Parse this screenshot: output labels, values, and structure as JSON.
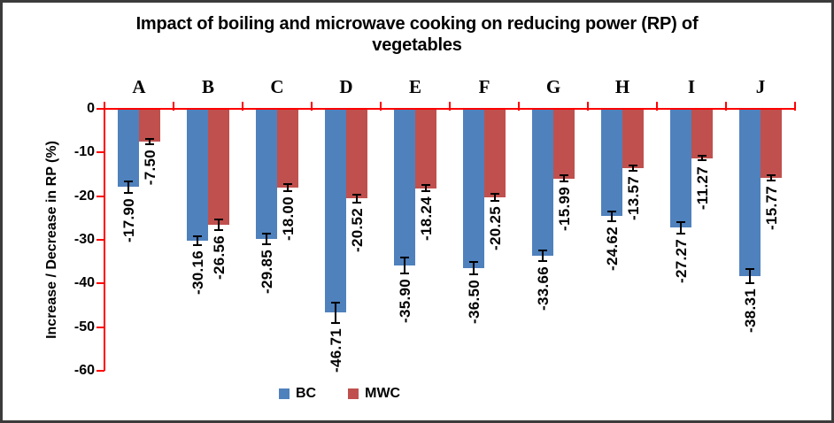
{
  "frame": {
    "border_color": "#3b3b3b",
    "background_color": "#ffffff"
  },
  "chart_data": {
    "type": "bar",
    "title": "Impact of boiling and microwave cooking on reducing power (RP) of vegetables",
    "xlabel": "",
    "ylabel": "Increase / Decrease in RP (%)",
    "categories": [
      "A",
      "B",
      "C",
      "D",
      "E",
      "F",
      "G",
      "H",
      "I",
      "J"
    ],
    "series": [
      {
        "name": "BC",
        "color": "#4F81BD",
        "values": [
          -17.9,
          -30.16,
          -29.85,
          -46.71,
          -35.9,
          -36.5,
          -33.66,
          -24.62,
          -27.27,
          -38.31
        ],
        "data_labels": [
          "-17.90",
          "-30.16",
          "-29.85",
          "-46.71",
          "-35.90",
          "-36.50",
          "-33.66",
          "-24.62",
          "-27.27",
          "-38.31"
        ],
        "error_bars": [
          1.5,
          1.2,
          1.4,
          2.5,
          2.0,
          1.7,
          1.5,
          1.3,
          1.5,
          1.8
        ]
      },
      {
        "name": "MWC",
        "color": "#C0504D",
        "values": [
          -7.5,
          -26.56,
          -18.0,
          -20.52,
          -18.24,
          -20.25,
          -15.99,
          -13.57,
          -11.27,
          -15.77
        ],
        "data_labels": [
          "-7.50",
          "-26.56",
          "-18.00",
          "-20.52",
          "-18.24",
          "-20.25",
          "-15.99",
          "-13.57",
          "-11.27",
          "-15.77"
        ],
        "error_bars": [
          0.8,
          1.5,
          1.0,
          1.1,
          0.9,
          1.0,
          0.9,
          0.8,
          0.8,
          0.8
        ]
      }
    ],
    "ylim": [
      -60,
      0
    ],
    "ytick_step": 10,
    "ytick_labels": [
      "0",
      "-10",
      "-20",
      "-30",
      "-40",
      "-50",
      "-60"
    ],
    "grid": false,
    "axis_color": "#FF0000",
    "text_color": "#000000",
    "data_label_rotation": "rotate-up",
    "legend_position": "bottom",
    "legend_items": [
      "BC",
      "MWC"
    ]
  }
}
